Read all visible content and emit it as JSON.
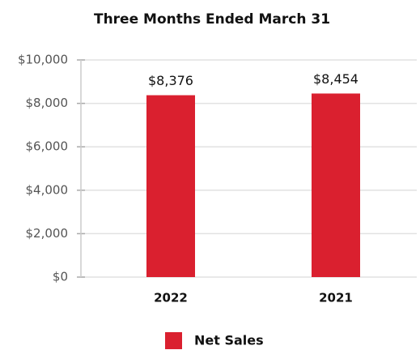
{
  "chart_data": {
    "type": "bar",
    "title": "Three Months Ended March 31",
    "categories": [
      "2022",
      "2021"
    ],
    "series": [
      {
        "name": "Net Sales",
        "color": "#da202f",
        "values": [
          8376,
          8454
        ],
        "value_labels": [
          "$8,376",
          "$8,454"
        ]
      }
    ],
    "ylim": [
      0,
      10000
    ],
    "yticks": [
      {
        "value": 0,
        "label": "$0"
      },
      {
        "value": 2000,
        "label": "$2,000"
      },
      {
        "value": 4000,
        "label": "$4,000"
      },
      {
        "value": 6000,
        "label": "$6,000"
      },
      {
        "value": 8000,
        "label": "$8,000"
      },
      {
        "value": 10000,
        "label": "$10,000"
      }
    ],
    "grid": true,
    "legend": "bottom"
  }
}
